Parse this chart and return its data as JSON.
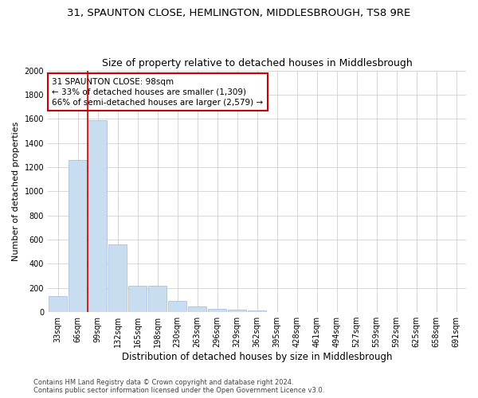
{
  "title_line1": "31, SPAUNTON CLOSE, HEMLINGTON, MIDDLESBROUGH, TS8 9RE",
  "title_line2": "Size of property relative to detached houses in Middlesbrough",
  "xlabel": "Distribution of detached houses by size in Middlesbrough",
  "ylabel": "Number of detached properties",
  "footer_line1": "Contains HM Land Registry data © Crown copyright and database right 2024.",
  "footer_line2": "Contains public sector information licensed under the Open Government Licence v3.0.",
  "bin_labels": [
    "33sqm",
    "66sqm",
    "99sqm",
    "132sqm",
    "165sqm",
    "198sqm",
    "230sqm",
    "263sqm",
    "296sqm",
    "329sqm",
    "362sqm",
    "395sqm",
    "428sqm",
    "461sqm",
    "494sqm",
    "527sqm",
    "559sqm",
    "592sqm",
    "625sqm",
    "658sqm",
    "691sqm"
  ],
  "bar_values": [
    130,
    1260,
    1590,
    560,
    220,
    220,
    90,
    47,
    30,
    18,
    15,
    0,
    0,
    0,
    0,
    0,
    0,
    0,
    0,
    0,
    0
  ],
  "bar_color": "#c9ddf0",
  "bar_edge_color": "#a0b8d8",
  "annotation_text": "31 SPAUNTON CLOSE: 98sqm\n← 33% of detached houses are smaller (1,309)\n66% of semi-detached houses are larger (2,579) →",
  "annotation_box_color": "#ffffff",
  "annotation_box_edge_color": "#cc0000",
  "vline_color": "#cc0000",
  "vline_x_index": 2,
  "ylim": [
    0,
    2000
  ],
  "yticks": [
    0,
    200,
    400,
    600,
    800,
    1000,
    1200,
    1400,
    1600,
    1800,
    2000
  ],
  "grid_color": "#d0d0d0",
  "background_color": "#ffffff",
  "title1_fontsize": 9.5,
  "title2_fontsize": 9,
  "xlabel_fontsize": 8.5,
  "ylabel_fontsize": 8,
  "tick_fontsize": 7,
  "annotation_fontsize": 7.5,
  "footer_fontsize": 6
}
